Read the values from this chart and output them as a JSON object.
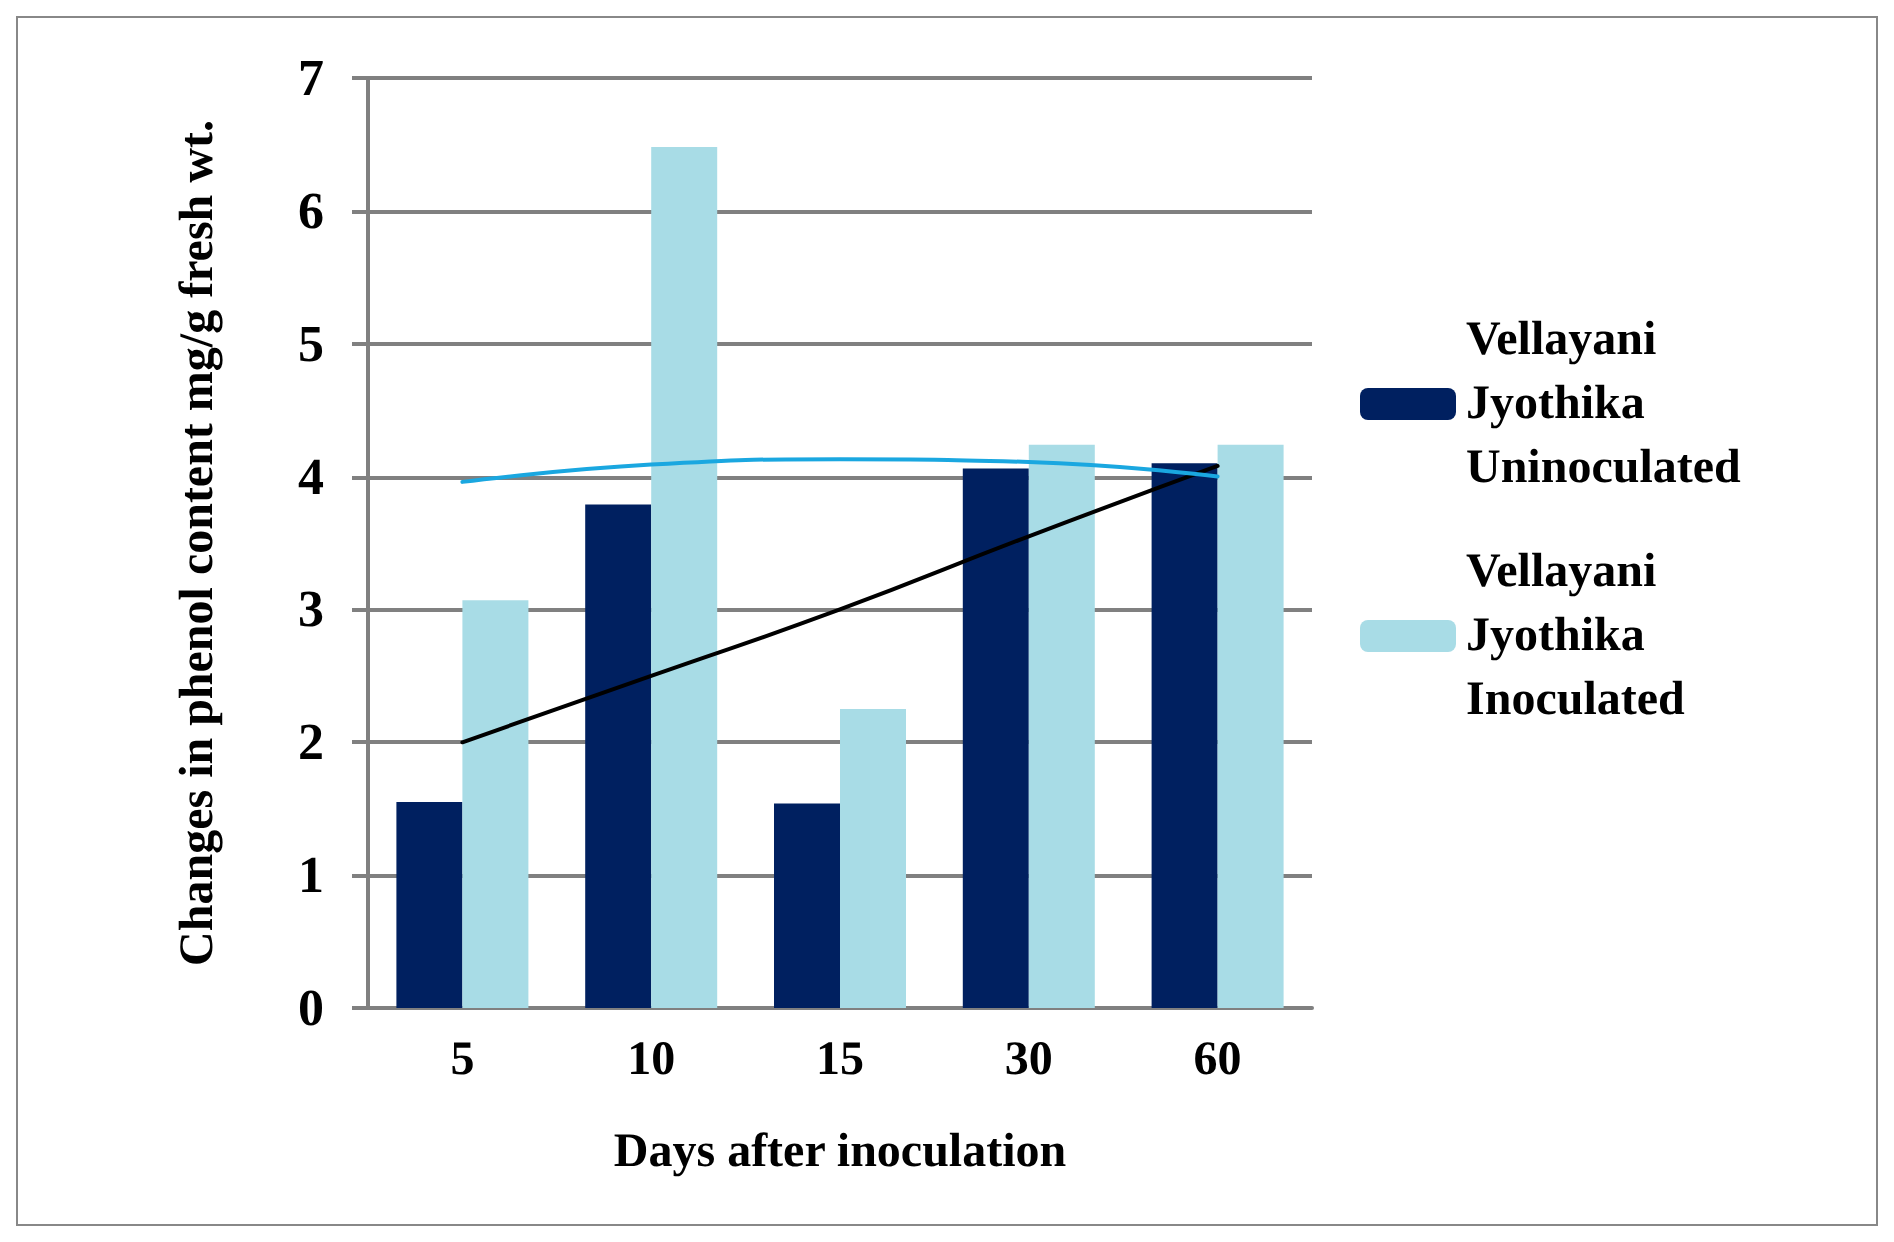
{
  "chart_data": {
    "type": "bar",
    "xlabel": "Days after inoculation",
    "ylabel": "Changes in phenol content mg/g fresh wt.",
    "categories": [
      "5",
      "10",
      "15",
      "30",
      "60"
    ],
    "series": [
      {
        "name": "Vellayani Jyothika Uninoculated",
        "color": "#002060",
        "values": [
          1.55,
          3.79,
          1.54,
          4.06,
          4.1
        ]
      },
      {
        "name": "Vellayani Jyothika Inoculated",
        "color": "#a8dce6",
        "values": [
          3.07,
          6.48,
          2.25,
          4.24,
          4.24
        ]
      },
      {
        "type": "line",
        "color": "#000000",
        "marker": "none",
        "values": [
          2.0,
          2.5,
          3.0,
          3.55,
          4.08
        ]
      },
      {
        "type": "line",
        "color": "#1aa7e0",
        "marker": "none",
        "values": [
          3.96,
          4.09,
          4.13,
          4.11,
          4.0
        ]
      }
    ],
    "ylim": [
      0,
      7
    ],
    "yticks": [
      0,
      1,
      2,
      3,
      4,
      5,
      6,
      7
    ],
    "grid": "y",
    "legend": "right"
  }
}
